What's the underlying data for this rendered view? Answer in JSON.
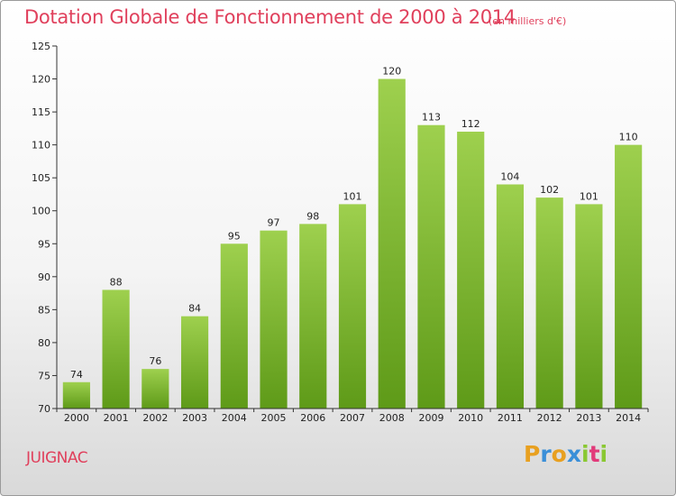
{
  "header": {
    "title": "Dotation Globale de Fonctionnement de 2000 à 2014",
    "unit": "(en milliers d'€)"
  },
  "footer": {
    "commune": "JUIGNAC",
    "logo_letters": [
      "P",
      "r",
      "o",
      "x",
      "i",
      "t",
      "i"
    ],
    "logo_colors": [
      "#e8a020",
      "#3a8fd8",
      "#e8a020",
      "#3a8fd8",
      "#8ac832",
      "#e23a7a",
      "#8ac832"
    ]
  },
  "colors": {
    "bar_top": "#9ed04e",
    "bar_bottom": "#5e9a18",
    "accent": "#e0405c"
  },
  "chart_data": {
    "type": "bar",
    "title": "Dotation Globale de Fonctionnement de 2000 à 2014",
    "subtitle": "(en milliers d'€)",
    "categories": [
      "2000",
      "2001",
      "2002",
      "2003",
      "2004",
      "2005",
      "2006",
      "2007",
      "2008",
      "2009",
      "2010",
      "2011",
      "2012",
      "2013",
      "2014"
    ],
    "values": [
      74,
      88,
      76,
      84,
      95,
      97,
      98,
      101,
      120,
      113,
      112,
      104,
      102,
      101,
      110
    ],
    "xlabel": "",
    "ylabel": "",
    "ylim": [
      70,
      125
    ],
    "yticks": [
      70,
      75,
      80,
      85,
      90,
      95,
      100,
      105,
      110,
      115,
      120,
      125
    ],
    "grid": false,
    "legend": "none"
  }
}
